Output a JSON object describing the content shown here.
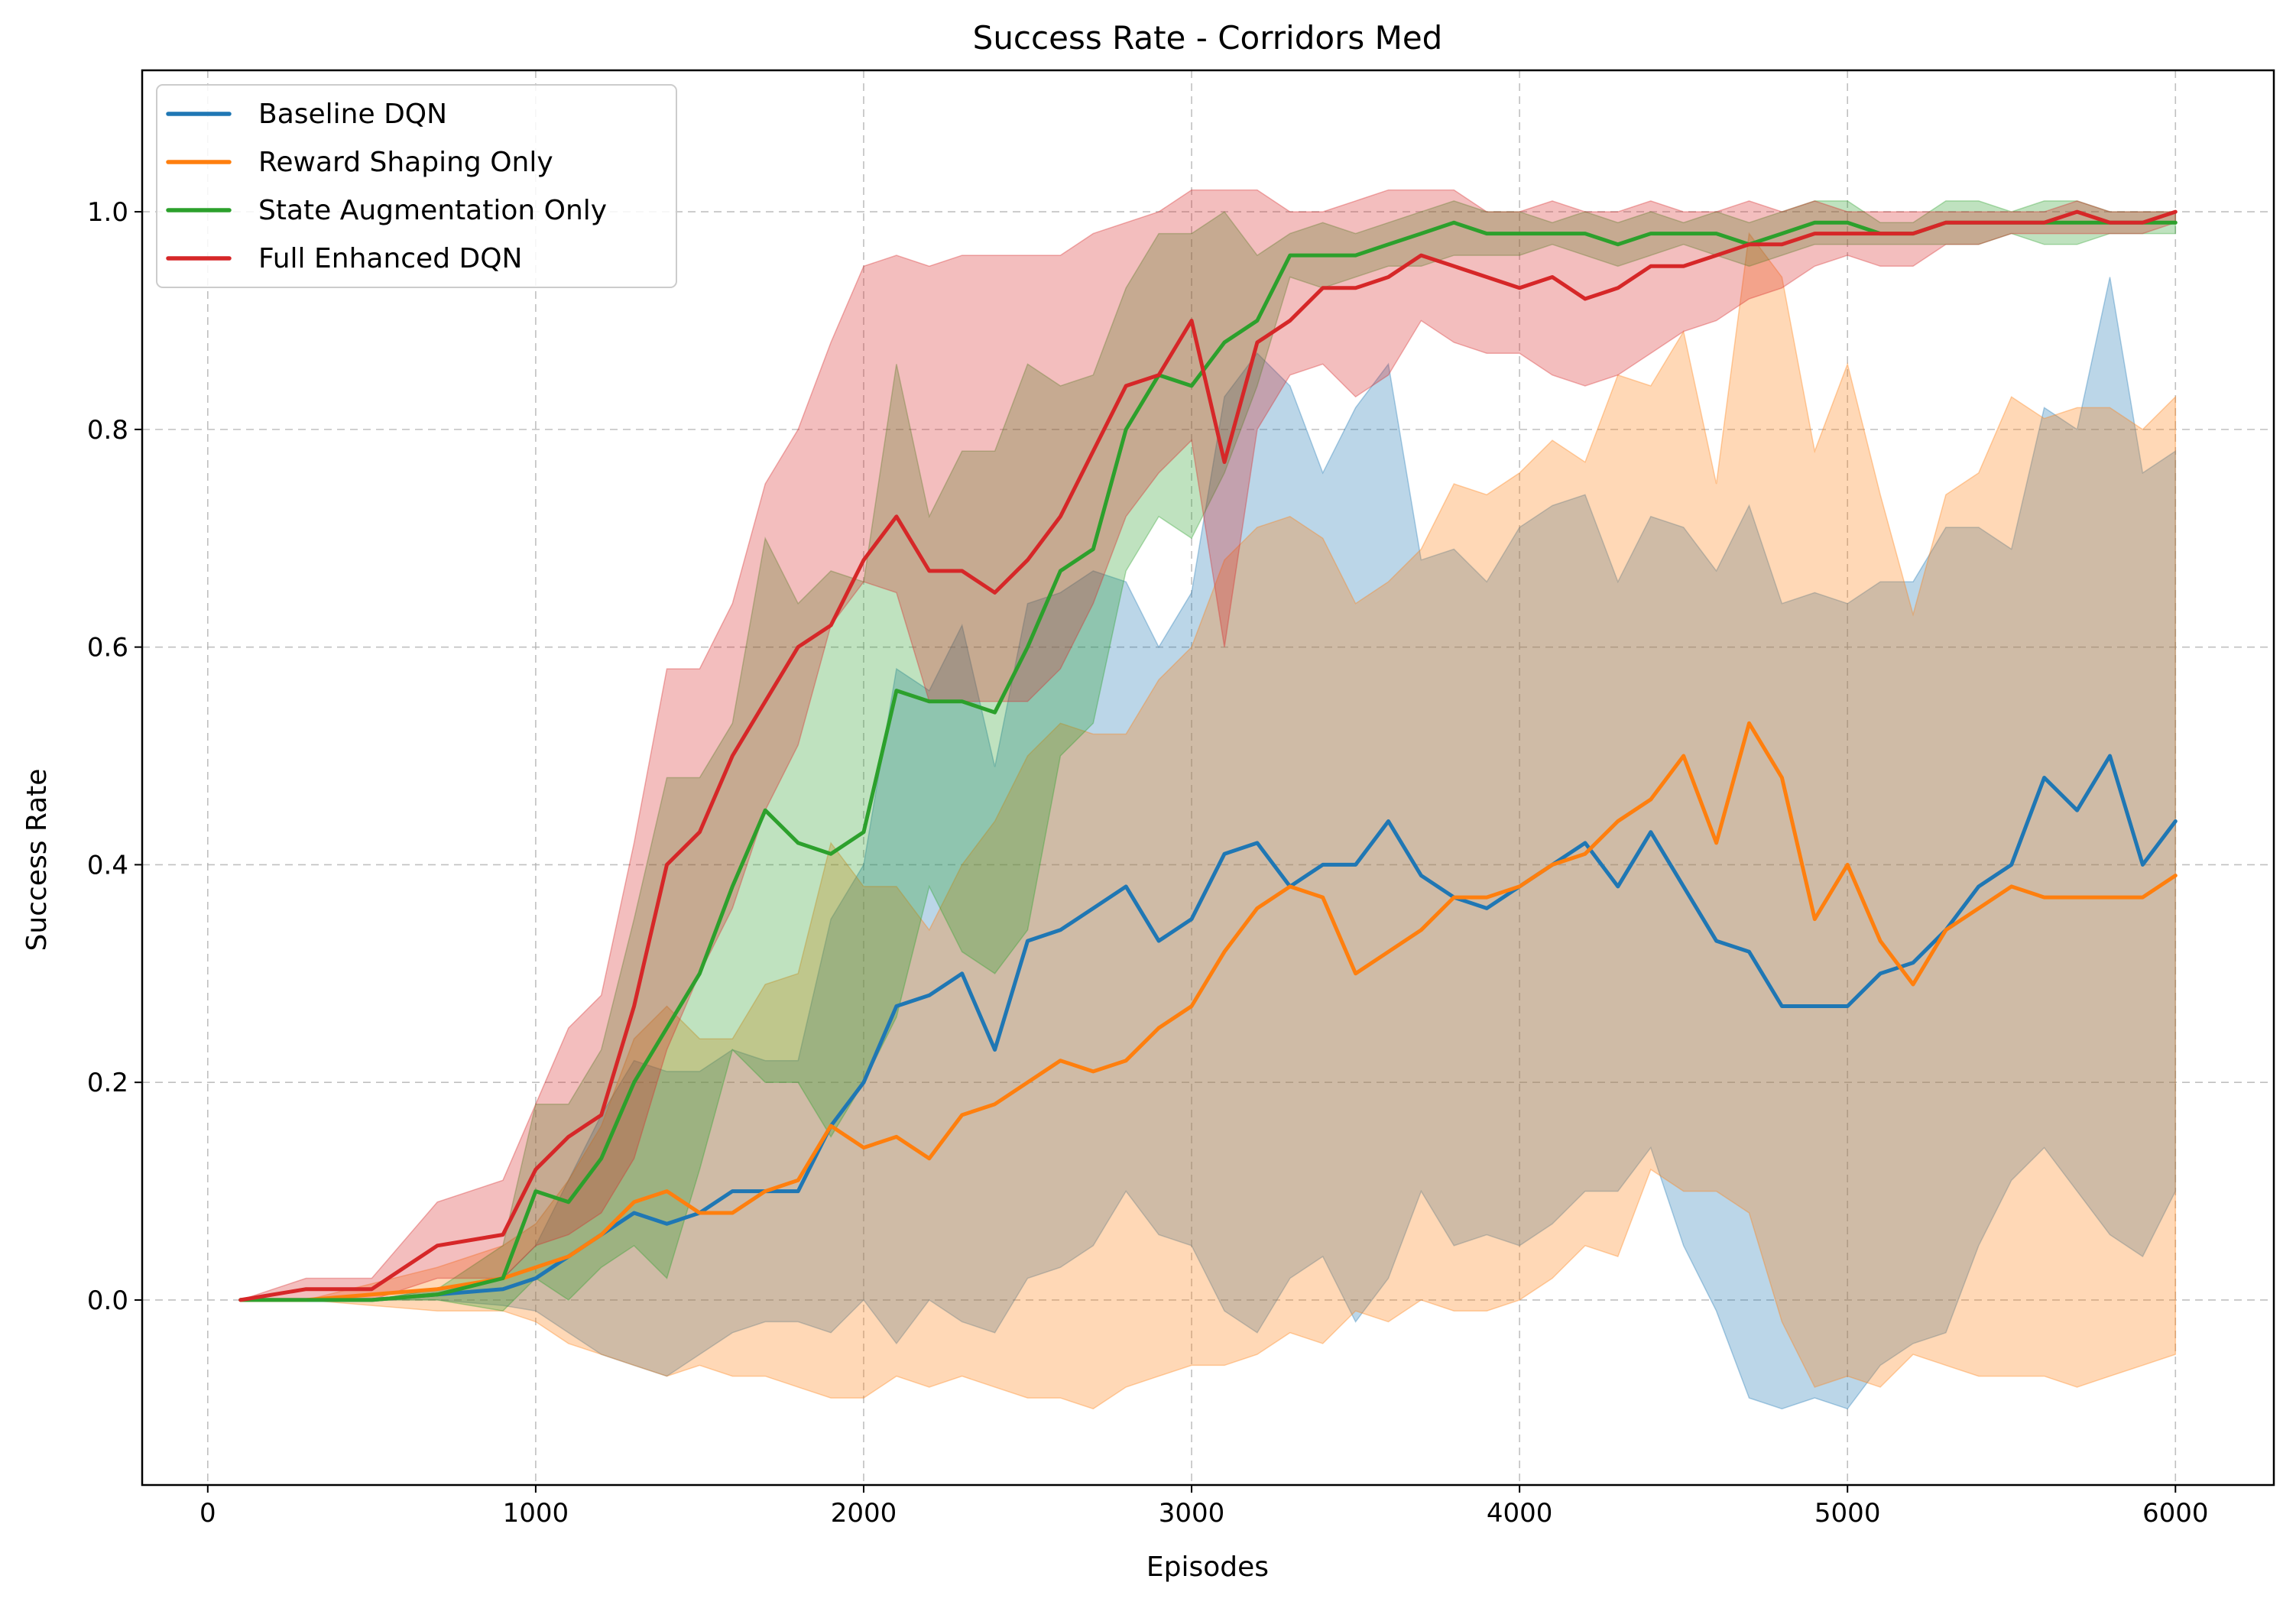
{
  "chart_data": {
    "type": "line",
    "title": "Success Rate - Corridors Med",
    "xlabel": "Episodes",
    "ylabel": "Success Rate",
    "xlim": [
      -200,
      6300
    ],
    "ylim": [
      -0.17,
      1.13
    ],
    "x_ticks": [
      0,
      1000,
      2000,
      3000,
      4000,
      5000,
      6000
    ],
    "y_ticks": [
      0.0,
      0.2,
      0.4,
      0.6,
      0.8,
      1.0
    ],
    "x_tick_labels": [
      "0",
      "1000",
      "2000",
      "3000",
      "4000",
      "5000",
      "6000"
    ],
    "y_tick_labels": [
      "0.0",
      "0.2",
      "0.4",
      "0.6",
      "0.8",
      "1.0"
    ],
    "grid": true,
    "grid_style": "dashed",
    "legend_position": "top-left",
    "shaded_band": "mean ± std",
    "series": [
      {
        "name": "Baseline DQN",
        "color": "#1f77b4",
        "x": [
          100,
          300,
          500,
          700,
          900,
          1000,
          1100,
          1200,
          1300,
          1400,
          1500,
          1600,
          1700,
          1800,
          1900,
          2000,
          2100,
          2200,
          2300,
          2400,
          2500,
          2600,
          2700,
          2800,
          2900,
          3000,
          3100,
          3200,
          3300,
          3400,
          3500,
          3600,
          3700,
          3800,
          3900,
          4000,
          4100,
          4200,
          4300,
          4400,
          4500,
          4600,
          4700,
          4800,
          4900,
          5000,
          5100,
          5200,
          5300,
          5400,
          5500,
          5600,
          5700,
          5800,
          5900,
          6000
        ],
        "y": [
          0.0,
          0.0,
          0.0,
          0.005,
          0.01,
          0.02,
          0.04,
          0.06,
          0.08,
          0.07,
          0.08,
          0.1,
          0.1,
          0.1,
          0.16,
          0.2,
          0.27,
          0.28,
          0.3,
          0.23,
          0.33,
          0.34,
          0.36,
          0.38,
          0.33,
          0.35,
          0.41,
          0.42,
          0.38,
          0.4,
          0.4,
          0.44,
          0.39,
          0.37,
          0.36,
          0.38,
          0.4,
          0.42,
          0.38,
          0.43,
          0.38,
          0.33,
          0.32,
          0.27,
          0.27,
          0.27,
          0.3,
          0.31,
          0.34,
          0.38,
          0.4,
          0.48,
          0.45,
          0.5,
          0.4,
          0.44
        ],
        "lower": [
          0.0,
          0.0,
          0.0,
          0.0,
          -0.005,
          -0.01,
          -0.03,
          -0.05,
          -0.06,
          -0.07,
          -0.05,
          -0.03,
          -0.02,
          -0.02,
          -0.03,
          0.0,
          -0.04,
          0.0,
          -0.02,
          -0.03,
          0.02,
          0.03,
          0.05,
          0.1,
          0.06,
          0.05,
          -0.01,
          -0.03,
          0.02,
          0.04,
          -0.02,
          0.02,
          0.1,
          0.05,
          0.06,
          0.05,
          0.07,
          0.1,
          0.1,
          0.14,
          0.05,
          -0.01,
          -0.09,
          -0.1,
          -0.09,
          -0.1,
          -0.06,
          -0.04,
          -0.03,
          0.05,
          0.11,
          0.14,
          0.1,
          0.06,
          0.04,
          0.1
        ],
        "upper": [
          0.0,
          0.0,
          0.0,
          0.01,
          0.02,
          0.05,
          0.11,
          0.17,
          0.22,
          0.21,
          0.21,
          0.23,
          0.22,
          0.22,
          0.35,
          0.4,
          0.58,
          0.56,
          0.62,
          0.49,
          0.64,
          0.65,
          0.67,
          0.66,
          0.6,
          0.65,
          0.83,
          0.87,
          0.84,
          0.76,
          0.82,
          0.86,
          0.68,
          0.69,
          0.66,
          0.71,
          0.73,
          0.74,
          0.66,
          0.72,
          0.71,
          0.67,
          0.73,
          0.64,
          0.65,
          0.64,
          0.66,
          0.66,
          0.71,
          0.71,
          0.69,
          0.82,
          0.8,
          0.94,
          0.76,
          0.78
        ]
      },
      {
        "name": "Reward Shaping Only",
        "color": "#ff7f0e",
        "x": [
          100,
          300,
          500,
          700,
          900,
          1000,
          1100,
          1200,
          1300,
          1400,
          1500,
          1600,
          1700,
          1800,
          1900,
          2000,
          2100,
          2200,
          2300,
          2400,
          2500,
          2600,
          2700,
          2800,
          2900,
          3000,
          3100,
          3200,
          3300,
          3400,
          3500,
          3600,
          3700,
          3800,
          3900,
          4000,
          4100,
          4200,
          4300,
          4400,
          4500,
          4600,
          4700,
          4800,
          4900,
          5000,
          5100,
          5200,
          5300,
          5400,
          5500,
          5600,
          5700,
          5800,
          5900,
          6000
        ],
        "y": [
          0.0,
          0.0,
          0.005,
          0.01,
          0.02,
          0.03,
          0.04,
          0.06,
          0.09,
          0.1,
          0.08,
          0.08,
          0.1,
          0.11,
          0.16,
          0.14,
          0.15,
          0.13,
          0.17,
          0.18,
          0.2,
          0.22,
          0.21,
          0.22,
          0.25,
          0.27,
          0.32,
          0.36,
          0.38,
          0.37,
          0.3,
          0.32,
          0.34,
          0.37,
          0.37,
          0.38,
          0.4,
          0.41,
          0.44,
          0.46,
          0.5,
          0.42,
          0.53,
          0.48,
          0.35,
          0.4,
          0.33,
          0.29,
          0.34,
          0.36,
          0.38,
          0.37,
          0.37,
          0.37,
          0.37,
          0.39
        ],
        "lower": [
          0.0,
          0.0,
          -0.005,
          -0.01,
          -0.01,
          -0.02,
          -0.04,
          -0.05,
          -0.06,
          -0.07,
          -0.06,
          -0.07,
          -0.07,
          -0.08,
          -0.09,
          -0.09,
          -0.07,
          -0.08,
          -0.07,
          -0.08,
          -0.09,
          -0.09,
          -0.1,
          -0.08,
          -0.07,
          -0.06,
          -0.06,
          -0.05,
          -0.03,
          -0.04,
          -0.01,
          -0.02,
          0.0,
          -0.01,
          -0.01,
          0.0,
          0.02,
          0.05,
          0.04,
          0.12,
          0.1,
          0.1,
          0.08,
          -0.02,
          -0.08,
          -0.07,
          -0.08,
          -0.05,
          -0.06,
          -0.07,
          -0.07,
          -0.07,
          -0.08,
          -0.07,
          -0.06,
          -0.05
        ],
        "upper": [
          0.0,
          0.0,
          0.015,
          0.03,
          0.05,
          0.07,
          0.11,
          0.16,
          0.24,
          0.27,
          0.24,
          0.24,
          0.29,
          0.3,
          0.42,
          0.38,
          0.38,
          0.34,
          0.4,
          0.44,
          0.5,
          0.53,
          0.52,
          0.52,
          0.57,
          0.6,
          0.68,
          0.71,
          0.72,
          0.7,
          0.64,
          0.66,
          0.69,
          0.75,
          0.74,
          0.76,
          0.79,
          0.77,
          0.85,
          0.84,
          0.89,
          0.75,
          0.98,
          0.94,
          0.78,
          0.86,
          0.74,
          0.63,
          0.74,
          0.76,
          0.83,
          0.81,
          0.82,
          0.82,
          0.8,
          0.83
        ]
      },
      {
        "name": "State Augmentation Only",
        "color": "#2ca02c",
        "x": [
          100,
          300,
          500,
          700,
          900,
          1000,
          1100,
          1200,
          1300,
          1400,
          1500,
          1600,
          1700,
          1800,
          1900,
          2000,
          2100,
          2200,
          2300,
          2400,
          2500,
          2600,
          2700,
          2800,
          2900,
          3000,
          3100,
          3200,
          3300,
          3400,
          3500,
          3600,
          3700,
          3800,
          3900,
          4000,
          4100,
          4200,
          4300,
          4400,
          4500,
          4600,
          4700,
          4800,
          4900,
          5000,
          5100,
          5200,
          5300,
          5400,
          5500,
          5600,
          5700,
          5800,
          5900,
          6000
        ],
        "y": [
          0.0,
          0.0,
          0.0,
          0.005,
          0.02,
          0.1,
          0.09,
          0.13,
          0.2,
          0.25,
          0.3,
          0.38,
          0.45,
          0.42,
          0.41,
          0.43,
          0.56,
          0.55,
          0.55,
          0.54,
          0.6,
          0.67,
          0.69,
          0.8,
          0.85,
          0.84,
          0.88,
          0.9,
          0.96,
          0.96,
          0.96,
          0.97,
          0.98,
          0.99,
          0.98,
          0.98,
          0.98,
          0.98,
          0.97,
          0.98,
          0.98,
          0.98,
          0.97,
          0.98,
          0.99,
          0.99,
          0.98,
          0.98,
          0.99,
          0.99,
          0.99,
          0.99,
          0.99,
          0.99,
          0.99,
          0.99
        ],
        "lower": [
          0.0,
          0.0,
          0.0,
          0.0,
          -0.01,
          0.02,
          0.0,
          0.03,
          0.05,
          0.02,
          0.12,
          0.23,
          0.2,
          0.2,
          0.15,
          0.2,
          0.26,
          0.38,
          0.32,
          0.3,
          0.34,
          0.5,
          0.53,
          0.67,
          0.72,
          0.7,
          0.76,
          0.84,
          0.94,
          0.93,
          0.94,
          0.95,
          0.95,
          0.96,
          0.96,
          0.96,
          0.97,
          0.96,
          0.95,
          0.96,
          0.97,
          0.96,
          0.95,
          0.96,
          0.97,
          0.97,
          0.97,
          0.97,
          0.97,
          0.97,
          0.98,
          0.97,
          0.97,
          0.98,
          0.98,
          0.98
        ],
        "upper": [
          0.0,
          0.0,
          0.0,
          0.01,
          0.05,
          0.18,
          0.18,
          0.23,
          0.35,
          0.48,
          0.48,
          0.53,
          0.7,
          0.64,
          0.67,
          0.66,
          0.86,
          0.72,
          0.78,
          0.78,
          0.86,
          0.84,
          0.85,
          0.93,
          0.98,
          0.98,
          1.0,
          0.96,
          0.98,
          0.99,
          0.98,
          0.99,
          1.0,
          1.01,
          1.0,
          1.0,
          0.99,
          1.0,
          0.99,
          1.0,
          0.99,
          1.0,
          0.99,
          1.0,
          1.01,
          1.01,
          0.99,
          0.99,
          1.01,
          1.01,
          1.0,
          1.01,
          1.01,
          1.0,
          1.0,
          1.0
        ]
      },
      {
        "name": "Full Enhanced DQN",
        "color": "#d62728",
        "x": [
          100,
          300,
          500,
          700,
          900,
          1000,
          1100,
          1200,
          1300,
          1400,
          1500,
          1600,
          1700,
          1800,
          1900,
          2000,
          2100,
          2200,
          2300,
          2400,
          2500,
          2600,
          2700,
          2800,
          2900,
          3000,
          3100,
          3200,
          3300,
          3400,
          3500,
          3600,
          3700,
          3800,
          3900,
          4000,
          4100,
          4200,
          4300,
          4400,
          4500,
          4600,
          4700,
          4800,
          4900,
          5000,
          5100,
          5200,
          5300,
          5400,
          5500,
          5600,
          5700,
          5800,
          5900,
          6000
        ],
        "y": [
          0.0,
          0.01,
          0.01,
          0.05,
          0.06,
          0.12,
          0.15,
          0.17,
          0.27,
          0.4,
          0.43,
          0.5,
          0.55,
          0.6,
          0.62,
          0.68,
          0.72,
          0.67,
          0.67,
          0.65,
          0.68,
          0.72,
          0.78,
          0.84,
          0.85,
          0.9,
          0.77,
          0.88,
          0.9,
          0.93,
          0.93,
          0.94,
          0.96,
          0.95,
          0.94,
          0.93,
          0.94,
          0.92,
          0.93,
          0.95,
          0.95,
          0.96,
          0.97,
          0.97,
          0.98,
          0.98,
          0.98,
          0.98,
          0.99,
          0.99,
          0.99,
          0.99,
          1.0,
          0.99,
          0.99,
          1.0
        ],
        "lower": [
          0.0,
          0.0,
          0.0,
          0.02,
          0.02,
          0.05,
          0.06,
          0.08,
          0.13,
          0.23,
          0.3,
          0.36,
          0.45,
          0.51,
          0.62,
          0.66,
          0.65,
          0.55,
          0.55,
          0.55,
          0.55,
          0.58,
          0.64,
          0.72,
          0.76,
          0.79,
          0.6,
          0.8,
          0.85,
          0.86,
          0.83,
          0.85,
          0.9,
          0.88,
          0.87,
          0.87,
          0.85,
          0.84,
          0.85,
          0.87,
          0.89,
          0.9,
          0.92,
          0.93,
          0.95,
          0.96,
          0.95,
          0.95,
          0.97,
          0.97,
          0.98,
          0.98,
          0.98,
          0.98,
          0.98,
          0.99
        ],
        "upper": [
          0.0,
          0.02,
          0.02,
          0.09,
          0.11,
          0.18,
          0.25,
          0.28,
          0.42,
          0.58,
          0.58,
          0.64,
          0.75,
          0.8,
          0.88,
          0.95,
          0.96,
          0.95,
          0.96,
          0.96,
          0.96,
          0.96,
          0.98,
          0.99,
          1.0,
          1.02,
          1.02,
          1.02,
          1.0,
          1.0,
          1.01,
          1.02,
          1.02,
          1.02,
          1.0,
          1.0,
          1.01,
          1.0,
          1.0,
          1.01,
          1.0,
          1.0,
          1.01,
          1.0,
          1.01,
          1.0,
          1.0,
          1.0,
          1.0,
          1.0,
          1.0,
          1.0,
          1.01,
          1.0,
          1.0,
          1.0
        ]
      }
    ]
  }
}
